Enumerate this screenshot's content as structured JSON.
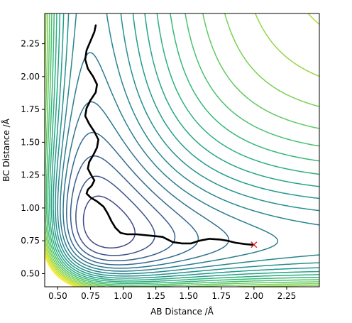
{
  "chart_data": {
    "type": "contour",
    "title": "",
    "xlabel": "AB Distance /Å",
    "ylabel": "BC Distance /Å",
    "xlim": [
      0.4,
      2.5
    ],
    "ylim": [
      0.4,
      2.48
    ],
    "x_ticks": [
      0.5,
      0.75,
      1.0,
      1.25,
      1.5,
      1.75,
      2.0,
      2.25
    ],
    "x_tick_labels": [
      "0.50",
      "0.75",
      "1.00",
      "1.25",
      "1.50",
      "1.75",
      "2.00",
      "2.25"
    ],
    "y_ticks": [
      0.5,
      0.75,
      1.0,
      1.25,
      1.5,
      1.75,
      2.0,
      2.25
    ],
    "y_tick_labels": [
      "0.50",
      "0.75",
      "1.00",
      "1.25",
      "1.50",
      "1.75",
      "2.00",
      "2.25"
    ],
    "colormap": "viridis",
    "contour_levels": 25,
    "grid": false,
    "trajectory": {
      "color": "#000000",
      "points": [
        [
          0.79,
          2.39
        ],
        [
          0.78,
          2.34
        ],
        [
          0.75,
          2.27
        ],
        [
          0.72,
          2.2
        ],
        [
          0.71,
          2.13
        ],
        [
          0.73,
          2.06
        ],
        [
          0.77,
          2.0
        ],
        [
          0.8,
          1.94
        ],
        [
          0.79,
          1.88
        ],
        [
          0.75,
          1.82
        ],
        [
          0.72,
          1.76
        ],
        [
          0.71,
          1.7
        ],
        [
          0.74,
          1.64
        ],
        [
          0.78,
          1.58
        ],
        [
          0.81,
          1.52
        ],
        [
          0.8,
          1.46
        ],
        [
          0.77,
          1.4
        ],
        [
          0.74,
          1.35
        ],
        [
          0.73,
          1.3
        ],
        [
          0.75,
          1.26
        ],
        [
          0.78,
          1.21
        ],
        [
          0.76,
          1.17
        ],
        [
          0.73,
          1.14
        ],
        [
          0.72,
          1.11
        ],
        [
          0.75,
          1.08
        ],
        [
          0.8,
          1.05
        ],
        [
          0.85,
          1.01
        ],
        [
          0.88,
          0.96
        ],
        [
          0.91,
          0.9
        ],
        [
          0.94,
          0.85
        ],
        [
          0.98,
          0.81
        ],
        [
          1.03,
          0.8
        ],
        [
          1.1,
          0.8
        ],
        [
          1.2,
          0.79
        ],
        [
          1.3,
          0.78
        ],
        [
          1.38,
          0.74
        ],
        [
          1.45,
          0.73
        ],
        [
          1.52,
          0.73
        ],
        [
          1.58,
          0.75
        ],
        [
          1.66,
          0.765
        ],
        [
          1.74,
          0.76
        ],
        [
          1.8,
          0.75
        ],
        [
          1.86,
          0.735
        ],
        [
          1.93,
          0.725
        ],
        [
          1.99,
          0.72
        ]
      ]
    },
    "end_marker": {
      "symbol": "x",
      "color": "#d62728",
      "x": 2.0,
      "y": 0.72
    }
  }
}
